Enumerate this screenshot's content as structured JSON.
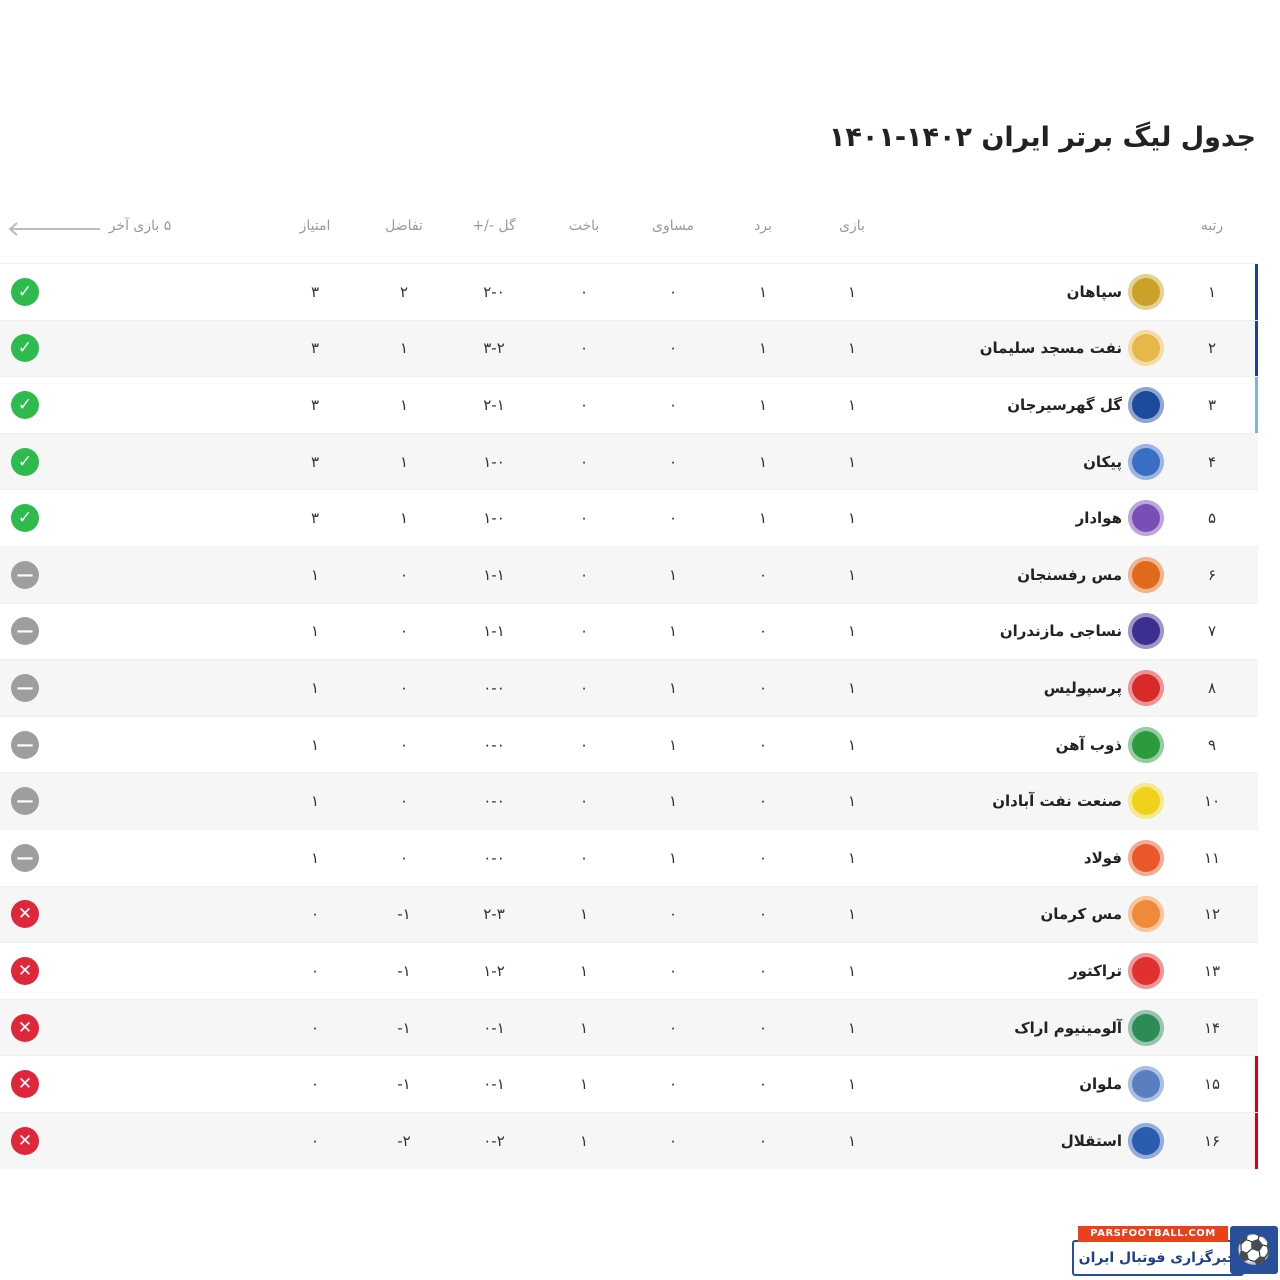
{
  "title": "جدول لیگ برتر ایران ۱۴۰۲-۱۴۰۱",
  "headers": {
    "rank": "رتبه",
    "played": "بازی",
    "won": "برد",
    "drawn": "مساوی",
    "lost": "باخت",
    "goals": "گل -/+",
    "diff": "تفاضل",
    "points": "امتیاز",
    "form": "۵ بازی آخر"
  },
  "colors": {
    "blue": "#1b3fa0",
    "lightblue": "#7fb3e3",
    "red": "#d0021b",
    "win": "#2dbb4e",
    "draw": "#9e9e9e",
    "loss": "#e0263a"
  },
  "rows": [
    {
      "rank": "۱",
      "team": "سپاهان",
      "played": "۱",
      "won": "۱",
      "drawn": "۰",
      "lost": "۰",
      "goals": "۲-۰",
      "diff": "۲",
      "points": "۳",
      "form": "win",
      "marker": "blue",
      "logo": "#c9a227"
    },
    {
      "rank": "۲",
      "team": "نفت مسجد سلیمان",
      "played": "۱",
      "won": "۱",
      "drawn": "۰",
      "lost": "۰",
      "goals": "۳-۲",
      "diff": "۱",
      "points": "۳",
      "form": "win",
      "marker": "blue",
      "logo": "#e6b84a"
    },
    {
      "rank": "۳",
      "team": "گل گهرسیرجان",
      "played": "۱",
      "won": "۱",
      "drawn": "۰",
      "lost": "۰",
      "goals": "۲-۱",
      "diff": "۱",
      "points": "۳",
      "form": "win",
      "marker": "lightblue",
      "logo": "#1d4a9c"
    },
    {
      "rank": "۴",
      "team": "پیکان",
      "played": "۱",
      "won": "۱",
      "drawn": "۰",
      "lost": "۰",
      "goals": "۱-۰",
      "diff": "۱",
      "points": "۳",
      "form": "win",
      "marker": "",
      "logo": "#3a6fc4"
    },
    {
      "rank": "۵",
      "team": "هوادار",
      "played": "۱",
      "won": "۱",
      "drawn": "۰",
      "lost": "۰",
      "goals": "۱-۰",
      "diff": "۱",
      "points": "۳",
      "form": "win",
      "marker": "",
      "logo": "#7a4fb5"
    },
    {
      "rank": "۶",
      "team": "مس رفسنجان",
      "played": "۱",
      "won": "۰",
      "drawn": "۱",
      "lost": "۰",
      "goals": "۱-۱",
      "diff": "۰",
      "points": "۱",
      "form": "draw",
      "marker": "",
      "logo": "#e06a1c"
    },
    {
      "rank": "۷",
      "team": "نساجی مازندران",
      "played": "۱",
      "won": "۰",
      "drawn": "۱",
      "lost": "۰",
      "goals": "۱-۱",
      "diff": "۰",
      "points": "۱",
      "form": "draw",
      "marker": "",
      "logo": "#3b2f8f"
    },
    {
      "rank": "۸",
      "team": "پرسپولیس",
      "played": "۱",
      "won": "۰",
      "drawn": "۱",
      "lost": "۰",
      "goals": "۰-۰",
      "diff": "۰",
      "points": "۱",
      "form": "draw",
      "marker": "",
      "logo": "#d92a2a"
    },
    {
      "rank": "۹",
      "team": "ذوب آهن",
      "played": "۱",
      "won": "۰",
      "drawn": "۱",
      "lost": "۰",
      "goals": "۰-۰",
      "diff": "۰",
      "points": "۱",
      "form": "draw",
      "marker": "",
      "logo": "#2c9a3f"
    },
    {
      "rank": "۱۰",
      "team": "صنعت نفت آبادان",
      "played": "۱",
      "won": "۰",
      "drawn": "۱",
      "lost": "۰",
      "goals": "۰-۰",
      "diff": "۰",
      "points": "۱",
      "form": "draw",
      "marker": "",
      "logo": "#f0d21c"
    },
    {
      "rank": "۱۱",
      "team": "فولاد",
      "played": "۱",
      "won": "۰",
      "drawn": "۱",
      "lost": "۰",
      "goals": "۰-۰",
      "diff": "۰",
      "points": "۱",
      "form": "draw",
      "marker": "",
      "logo": "#e8582a"
    },
    {
      "rank": "۱۲",
      "team": "مس کرمان",
      "played": "۱",
      "won": "۰",
      "drawn": "۰",
      "lost": "۱",
      "goals": "۲-۳",
      "diff": "-۱",
      "points": "۰",
      "form": "loss",
      "marker": "",
      "logo": "#f08a3a"
    },
    {
      "rank": "۱۳",
      "team": "تراکتور",
      "played": "۱",
      "won": "۰",
      "drawn": "۰",
      "lost": "۱",
      "goals": "۱-۲",
      "diff": "-۱",
      "points": "۰",
      "form": "loss",
      "marker": "",
      "logo": "#e03030"
    },
    {
      "rank": "۱۴",
      "team": "آلومینیوم اراک",
      "played": "۱",
      "won": "۰",
      "drawn": "۰",
      "lost": "۱",
      "goals": "۰-۱",
      "diff": "-۱",
      "points": "۰",
      "form": "loss",
      "marker": "",
      "logo": "#2e8b57"
    },
    {
      "rank": "۱۵",
      "team": "ملوان",
      "played": "۱",
      "won": "۰",
      "drawn": "۰",
      "lost": "۱",
      "goals": "۰-۱",
      "diff": "-۱",
      "points": "۰",
      "form": "loss",
      "marker": "red",
      "logo": "#5a7fc0"
    },
    {
      "rank": "۱۶",
      "team": "استقلال",
      "played": "۱",
      "won": "۰",
      "drawn": "۰",
      "lost": "۱",
      "goals": "۰-۲",
      "diff": "-۲",
      "points": "۰",
      "form": "loss",
      "marker": "red",
      "logo": "#2a5db0"
    }
  ],
  "watermark": {
    "site": "PARSFOOTBALL.COM",
    "tagline": "خبرگزاری فوتبال ایران"
  }
}
